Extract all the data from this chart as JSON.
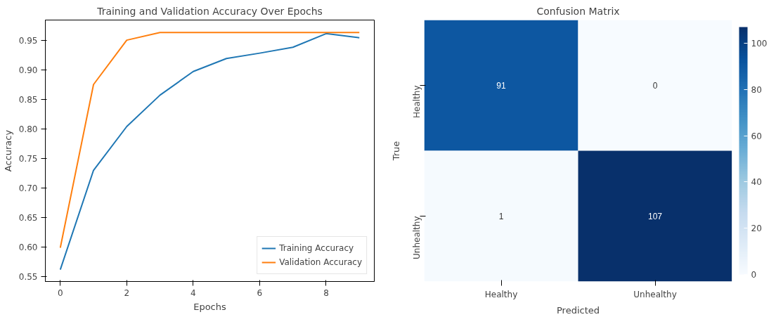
{
  "chart_data": [
    {
      "type": "line",
      "title": "Training and Validation Accuracy Over Epochs",
      "xlabel": "Epochs",
      "ylabel": "Accuracy",
      "x": [
        0,
        1,
        2,
        3,
        4,
        5,
        6,
        7,
        8,
        9
      ],
      "series": [
        {
          "name": "Training Accuracy",
          "color": "#1f77b4",
          "values": [
            0.562,
            0.73,
            0.804,
            0.857,
            0.897,
            0.919,
            0.928,
            0.938,
            0.961,
            0.954
          ]
        },
        {
          "name": "Validation Accuracy",
          "color": "#ff7f0e",
          "values": [
            0.599,
            0.875,
            0.95,
            0.963,
            0.963,
            0.963,
            0.963,
            0.963,
            0.963,
            0.963
          ]
        }
      ],
      "xlim": [
        -0.45,
        9.45
      ],
      "ylim": [
        0.542,
        0.984
      ],
      "xticks": [
        0,
        2,
        4,
        6,
        8
      ],
      "yticks": [
        {
          "value": 0.55,
          "label": "0.55"
        },
        {
          "value": 0.6,
          "label": "0.60"
        },
        {
          "value": 0.65,
          "label": "0.65"
        },
        {
          "value": 0.7,
          "label": "0.70"
        },
        {
          "value": 0.75,
          "label": "0.75"
        },
        {
          "value": 0.8,
          "label": "0.80"
        },
        {
          "value": 0.85,
          "label": "0.85"
        },
        {
          "value": 0.9,
          "label": "0.90"
        },
        {
          "value": 0.95,
          "label": "0.95"
        }
      ],
      "grid": false,
      "legend": "bottom right",
      "marker": "none",
      "line_style": "solid"
    },
    {
      "type": "heatmap",
      "title": "Confusion Matrix",
      "xlabel": "Predicted",
      "ylabel": "True",
      "categories": [
        "Healthy",
        "Unhealthy"
      ],
      "y_categories": [
        "Healthy",
        "Unhealthy"
      ],
      "cells": [
        [
          91,
          0
        ],
        [
          1,
          107
        ]
      ],
      "data_labels": true,
      "clim": [
        0,
        107
      ],
      "cticks": [
        0,
        20,
        40,
        60,
        80,
        100
      ]
    }
  ]
}
